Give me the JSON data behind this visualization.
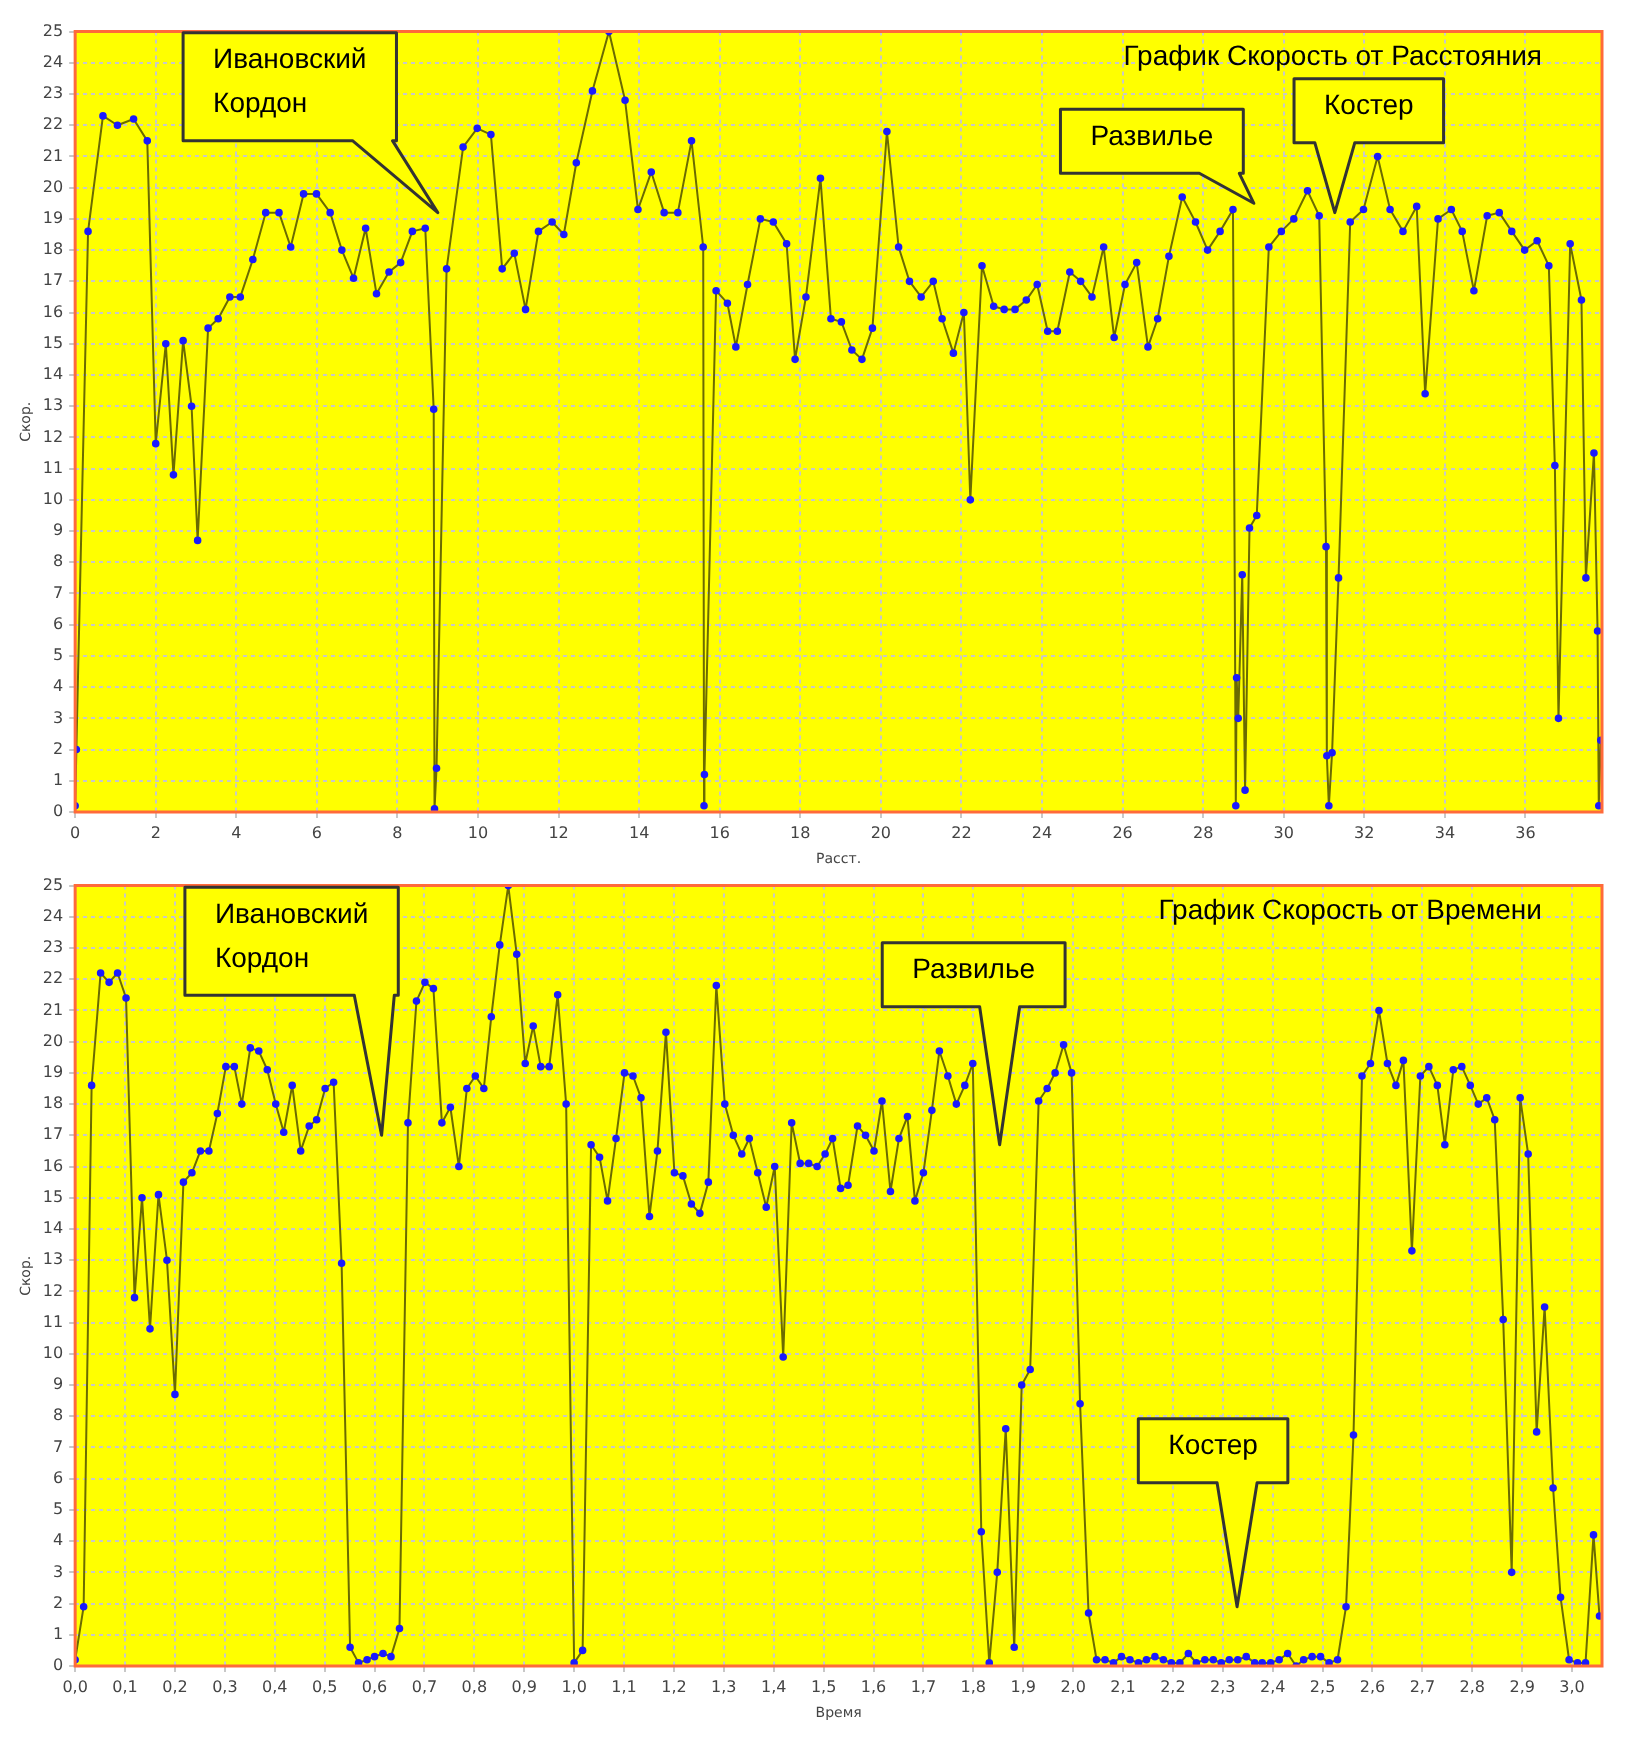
{
  "chart_data": [
    {
      "type": "line",
      "title": "График Скорость от Расстояния",
      "xlabel": "Расст.",
      "ylabel": "Скор.",
      "color": "#6b6b00",
      "marker": "circle",
      "grid": true,
      "legend": false,
      "xlim": [
        0,
        37.9
      ],
      "xticks": [
        0,
        2,
        4,
        6,
        8,
        10,
        12,
        14,
        16,
        18,
        20,
        22,
        24,
        26,
        28,
        30,
        32,
        34,
        36
      ],
      "ylim": [
        0,
        25
      ],
      "yticks": [
        0,
        1,
        2,
        3,
        4,
        5,
        6,
        7,
        8,
        9,
        10,
        11,
        12,
        13,
        14,
        15,
        16,
        17,
        18,
        19,
        20,
        21,
        22,
        23,
        24,
        25
      ],
      "x": [
        0,
        0.03,
        0.32,
        0.69,
        1.05,
        1.45,
        1.79,
        2.0,
        2.25,
        2.44,
        2.68,
        2.89,
        3.04,
        3.3,
        3.55,
        3.84,
        4.1,
        4.41,
        4.73,
        5.06,
        5.35,
        5.67,
        5.99,
        6.33,
        6.62,
        6.91,
        7.21,
        7.48,
        7.79,
        8.08,
        8.37,
        8.69,
        8.9,
        8.92,
        8.97,
        9.22,
        9.63,
        9.98,
        10.32,
        10.6,
        10.9,
        11.18,
        11.5,
        11.84,
        12.13,
        12.44,
        12.84,
        13.25,
        13.65,
        13.97,
        14.3,
        14.62,
        14.96,
        15.3,
        15.59,
        15.61,
        15.62,
        15.91,
        16.19,
        16.4,
        16.69,
        17.01,
        17.33,
        17.66,
        17.87,
        18.14,
        18.5,
        18.76,
        19.02,
        19.28,
        19.53,
        19.79,
        20.15,
        20.44,
        20.71,
        21.0,
        21.3,
        21.52,
        21.8,
        22.06,
        22.22,
        22.51,
        22.8,
        23.06,
        23.33,
        23.61,
        23.88,
        24.14,
        24.38,
        24.69,
        24.96,
        25.24,
        25.53,
        25.79,
        26.06,
        26.35,
        26.63,
        26.87,
        27.15,
        27.48,
        27.81,
        28.11,
        28.42,
        28.74,
        28.81,
        28.83,
        28.87,
        28.97,
        29.04,
        29.15,
        29.33,
        29.63,
        29.94,
        30.25,
        30.59,
        30.88,
        31.05,
        31.07,
        31.12,
        31.2,
        31.36,
        31.65,
        31.98,
        32.33,
        32.64,
        32.96,
        33.3,
        33.51,
        33.83,
        34.16,
        34.43,
        34.72,
        35.05,
        35.35,
        35.66,
        35.98,
        36.29,
        36.58,
        36.73,
        36.82,
        37.11,
        37.39,
        37.5,
        37.7,
        37.79,
        37.82,
        37.87
      ],
      "values": [
        0.2,
        2,
        18.6,
        22.3,
        22.0,
        22.2,
        21.5,
        11.8,
        15.0,
        10.8,
        15.1,
        13.0,
        8.7,
        15.5,
        15.8,
        16.5,
        16.5,
        17.7,
        19.2,
        19.2,
        18.1,
        19.8,
        19.8,
        19.2,
        18.0,
        17.1,
        18.7,
        16.6,
        17.3,
        17.6,
        18.6,
        18.7,
        12.9,
        0.1,
        1.4,
        17.4,
        21.3,
        21.9,
        21.7,
        17.4,
        17.9,
        16.1,
        18.6,
        18.9,
        18.5,
        20.8,
        23.1,
        25.0,
        22.8,
        19.3,
        20.5,
        19.2,
        19.2,
        21.5,
        18.1,
        0.2,
        1.2,
        16.7,
        16.3,
        14.9,
        16.9,
        19.0,
        18.9,
        18.2,
        14.5,
        16.5,
        20.3,
        15.8,
        15.7,
        14.8,
        14.5,
        15.5,
        21.8,
        18.1,
        17.0,
        16.5,
        17.0,
        15.8,
        14.7,
        16.0,
        10.0,
        17.5,
        16.2,
        16.1,
        16.1,
        16.4,
        16.9,
        15.4,
        15.4,
        17.3,
        17.0,
        16.5,
        18.1,
        15.2,
        16.9,
        17.6,
        14.9,
        15.8,
        17.8,
        19.7,
        18.9,
        18.0,
        18.6,
        19.3,
        0.2,
        4.3,
        3.0,
        7.6,
        0.7,
        9.1,
        9.5,
        18.1,
        18.6,
        19.0,
        19.9,
        19.1,
        8.5,
        1.8,
        0.2,
        1.9,
        7.5,
        18.9,
        19.3,
        21.0,
        19.3,
        18.6,
        19.4,
        13.4,
        19.0,
        19.3,
        18.6,
        16.7,
        19.1,
        19.2,
        18.6,
        18.0,
        18.3,
        17.5,
        11.1,
        3.0,
        18.2,
        16.4,
        7.5,
        11.5,
        5.8,
        0.2,
        2.3
      ],
      "annotations": [
        "Ивановский Кордон",
        "Развилье",
        "Костер"
      ]
    },
    {
      "type": "line",
      "title": "График Скорость от Времени",
      "xlabel": "Время",
      "ylabel": "Скор.",
      "color": "#6b6b00",
      "marker": "circle",
      "grid": true,
      "legend": false,
      "xlim": [
        0,
        3.06
      ],
      "xticks": [
        {
          "value": 0,
          "label": "0,0"
        },
        {
          "value": 0.1,
          "label": "0,1"
        },
        {
          "value": 0.2,
          "label": "0,2"
        },
        {
          "value": 0.3,
          "label": "0,3"
        },
        {
          "value": 0.4,
          "label": "0,4"
        },
        {
          "value": 0.5,
          "label": "0,5"
        },
        {
          "value": 0.6,
          "label": "0,6"
        },
        {
          "value": 0.7,
          "label": "0,7"
        },
        {
          "value": 0.8,
          "label": "0,8"
        },
        {
          "value": 0.9,
          "label": "0,9"
        },
        {
          "value": 1.0,
          "label": "1,0"
        },
        {
          "value": 1.1,
          "label": "1,1"
        },
        {
          "value": 1.2,
          "label": "1,2"
        },
        {
          "value": 1.3,
          "label": "1,3"
        },
        {
          "value": 1.4,
          "label": "1,4"
        },
        {
          "value": 1.5,
          "label": "1,5"
        },
        {
          "value": 1.6,
          "label": "1,6"
        },
        {
          "value": 1.7,
          "label": "1,7"
        },
        {
          "value": 1.8,
          "label": "1,8"
        },
        {
          "value": 1.9,
          "label": "1,9"
        },
        {
          "value": 2.0,
          "label": "2,0"
        },
        {
          "value": 2.1,
          "label": "2,1"
        },
        {
          "value": 2.2,
          "label": "2,2"
        },
        {
          "value": 2.3,
          "label": "2,3"
        },
        {
          "value": 2.4,
          "label": "2,4"
        },
        {
          "value": 2.5,
          "label": "2,5"
        },
        {
          "value": 2.6,
          "label": "2,6"
        },
        {
          "value": 2.7,
          "label": "2,7"
        },
        {
          "value": 2.8,
          "label": "2,8"
        },
        {
          "value": 2.9,
          "label": "2,9"
        },
        {
          "value": 3.0,
          "label": "3,0"
        }
      ],
      "ylim": [
        0,
        25
      ],
      "yticks": [
        0,
        1,
        2,
        3,
        4,
        5,
        6,
        7,
        8,
        9,
        10,
        11,
        12,
        13,
        14,
        15,
        16,
        17,
        18,
        19,
        20,
        21,
        22,
        23,
        24,
        25
      ],
      "x": [
        0,
        0.017,
        0.033,
        0.051,
        0.068,
        0.085,
        0.102,
        0.119,
        0.134,
        0.15,
        0.167,
        0.184,
        0.2,
        0.217,
        0.234,
        0.251,
        0.268,
        0.285,
        0.302,
        0.319,
        0.334,
        0.351,
        0.368,
        0.385,
        0.402,
        0.418,
        0.435,
        0.452,
        0.469,
        0.484,
        0.501,
        0.518,
        0.534,
        0.551,
        0.568,
        0.585,
        0.6,
        0.617,
        0.633,
        0.65,
        0.667,
        0.684,
        0.701,
        0.718,
        0.735,
        0.752,
        0.769,
        0.785,
        0.802,
        0.819,
        0.834,
        0.851,
        0.868,
        0.885,
        0.902,
        0.918,
        0.933,
        0.95,
        0.967,
        0.984,
        1.0,
        1.017,
        1.034,
        1.051,
        1.067,
        1.084,
        1.101,
        1.118,
        1.134,
        1.151,
        1.167,
        1.184,
        1.201,
        1.218,
        1.235,
        1.252,
        1.269,
        1.285,
        1.302,
        1.319,
        1.336,
        1.351,
        1.368,
        1.385,
        1.402,
        1.419,
        1.436,
        1.453,
        1.47,
        1.487,
        1.503,
        1.518,
        1.534,
        1.549,
        1.568,
        1.584,
        1.601,
        1.617,
        1.634,
        1.651,
        1.668,
        1.683,
        1.7,
        1.717,
        1.732,
        1.749,
        1.766,
        1.783,
        1.799,
        1.816,
        1.832,
        1.848,
        1.865,
        1.882,
        1.897,
        1.914,
        1.931,
        1.948,
        1.964,
        1.981,
        1.997,
        2.014,
        2.031,
        2.047,
        2.064,
        2.081,
        2.097,
        2.114,
        2.131,
        2.147,
        2.164,
        2.181,
        2.197,
        2.214,
        2.231,
        2.247,
        2.264,
        2.281,
        2.297,
        2.313,
        2.33,
        2.347,
        2.364,
        2.379,
        2.396,
        2.413,
        2.43,
        2.447,
        2.462,
        2.479,
        2.496,
        2.513,
        2.53,
        2.547,
        2.562,
        2.579,
        2.596,
        2.613,
        2.63,
        2.647,
        2.662,
        2.679,
        2.696,
        2.713,
        2.73,
        2.745,
        2.762,
        2.779,
        2.796,
        2.812,
        2.829,
        2.845,
        2.862,
        2.879,
        2.896,
        2.912,
        2.929,
        2.945,
        2.962,
        2.977,
        2.994,
        3.011,
        3.027,
        3.043,
        3.055
      ],
      "values": [
        0.2,
        1.9,
        18.6,
        22.2,
        21.9,
        22.2,
        21.4,
        11.8,
        15.0,
        10.8,
        15.1,
        13.0,
        8.7,
        15.5,
        15.8,
        16.5,
        16.5,
        17.7,
        19.2,
        19.2,
        18.0,
        19.8,
        19.7,
        19.1,
        18.0,
        17.1,
        18.6,
        16.5,
        17.3,
        17.5,
        18.5,
        18.7,
        12.9,
        0.6,
        0.1,
        0.2,
        0.3,
        0.4,
        0.3,
        1.2,
        17.4,
        21.3,
        21.9,
        21.7,
        17.4,
        17.9,
        16.0,
        18.5,
        18.9,
        18.5,
        20.8,
        23.1,
        25.0,
        22.8,
        19.3,
        20.5,
        19.2,
        19.2,
        21.5,
        18.0,
        0.1,
        0.5,
        16.7,
        16.3,
        14.9,
        16.9,
        19.0,
        18.9,
        18.2,
        14.4,
        16.5,
        20.3,
        15.8,
        15.7,
        14.8,
        14.5,
        15.5,
        21.8,
        18.0,
        17.0,
        16.4,
        16.9,
        15.8,
        14.7,
        16.0,
        9.9,
        17.4,
        16.1,
        16.1,
        16.0,
        16.4,
        16.9,
        15.3,
        15.4,
        17.3,
        17.0,
        16.5,
        18.1,
        15.2,
        16.9,
        17.6,
        14.9,
        15.8,
        17.8,
        19.7,
        18.9,
        18.0,
        18.6,
        19.3,
        4.3,
        0.1,
        3.0,
        7.6,
        0.6,
        9.0,
        9.5,
        18.1,
        18.5,
        19.0,
        19.9,
        19.0,
        8.4,
        1.7,
        0.2,
        0.2,
        0.1,
        0.3,
        0.2,
        0.1,
        0.2,
        0.3,
        0.2,
        0.1,
        0.1,
        0.4,
        0.1,
        0.2,
        0.2,
        0.1,
        0.2,
        0.2,
        0.3,
        0.1,
        0.1,
        0.1,
        0.2,
        0.4,
        0.0,
        0.2,
        0.3,
        0.3,
        0.1,
        0.2,
        1.9,
        7.4,
        18.9,
        19.3,
        21.0,
        19.3,
        18.6,
        19.4,
        13.3,
        18.9,
        19.2,
        18.6,
        16.7,
        19.1,
        19.2,
        18.6,
        18.0,
        18.2,
        17.5,
        11.1,
        3.0,
        18.2,
        16.4,
        7.5,
        11.5,
        5.7,
        2.2,
        0.2,
        0.1,
        0.1,
        4.2,
        1.6
      ],
      "annotations": [
        "Ивановский Кордон",
        "Развилье",
        "Костер"
      ]
    }
  ]
}
